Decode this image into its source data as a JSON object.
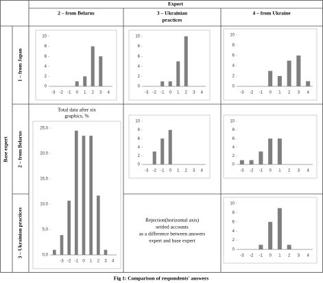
{
  "table": {
    "top": "Expert",
    "side": "Base expert",
    "columns": [
      [
        "2 – from Belarus"
      ],
      [
        "3 – Ukrainian",
        "practices"
      ],
      [
        "4 – from Ukraine"
      ]
    ],
    "rows": [
      "1 – from Japan",
      "2 – from Belarus",
      "3 – Ukrainian practices"
    ],
    "note": [
      "Rejection(horizontal axis)",
      "settled accounts",
      "as a difference between answers",
      "expert and base expert"
    ]
  },
  "caption": "Fig 1: Comparison of respondents' answers",
  "chart_data": [
    {
      "type": "bar",
      "color": "#7f7f7f",
      "categories": [
        "-3",
        "-2",
        "-1",
        "0",
        "1",
        "2",
        "3",
        "4"
      ],
      "values": [
        0,
        0,
        0,
        1,
        2,
        8,
        6,
        0
      ],
      "ylim": [
        0,
        10
      ],
      "yticks": [
        0,
        2,
        4,
        6,
        8,
        10
      ]
    },
    {
      "type": "bar",
      "color": "#7f7f7f",
      "categories": [
        "-3",
        "-2",
        "-1",
        "0",
        "1",
        "2",
        "3",
        "4"
      ],
      "values": [
        0,
        0,
        1,
        1,
        5,
        10,
        0,
        0
      ],
      "ylim": [
        0,
        10
      ],
      "yticks": [
        0,
        2,
        4,
        6,
        8,
        10
      ]
    },
    {
      "type": "bar",
      "color": "#7f7f7f",
      "categories": [
        "-3",
        "-2",
        "-1",
        "0",
        "1",
        "2",
        "3",
        "4"
      ],
      "values": [
        0,
        0,
        0,
        3,
        2,
        5,
        6,
        1
      ],
      "ylim": [
        0,
        10
      ],
      "yticks": [
        0,
        2,
        4,
        6,
        8,
        10
      ]
    },
    {
      "type": "bar",
      "color": "#7f7f7f",
      "title": [
        "Total data after six",
        "graphics, %"
      ],
      "categories": [
        null,
        "-3",
        "-2",
        "-1",
        "0",
        "1",
        "2",
        "3",
        "4"
      ],
      "values": [
        1,
        3.9,
        10.7,
        24.5,
        23.5,
        23.5,
        11.7,
        1,
        0
      ],
      "ylim": [
        0,
        25
      ],
      "yticks": [
        {
          "value": 0,
          "label": "0,0"
        },
        {
          "value": 5,
          "label": "5,0"
        },
        {
          "value": 10,
          "label": "10,0"
        },
        {
          "value": 15,
          "label": "15,0"
        },
        {
          "value": 20,
          "label": "20,0"
        },
        {
          "value": 25,
          "label": "25,0"
        }
      ]
    },
    {
      "type": "bar",
      "color": "#7f7f7f",
      "categories": [
        "-3",
        "-2",
        "-1",
        "0",
        "1",
        "2",
        "3",
        "4"
      ],
      "values": [
        0,
        3,
        6,
        8,
        0,
        0,
        0,
        0
      ],
      "ylim": [
        0,
        10
      ],
      "yticks": [
        0,
        2,
        4,
        6,
        8,
        10
      ]
    },
    {
      "type": "bar",
      "color": "#7f7f7f",
      "categories": [
        "-3",
        "-2",
        "-1",
        "0",
        "1",
        "2",
        "3",
        "4"
      ],
      "values": [
        1,
        1,
        3,
        6,
        6,
        0,
        0,
        0
      ],
      "ylim": [
        0,
        10
      ],
      "yticks": [
        0,
        2,
        4,
        6,
        8,
        10
      ]
    },
    {
      "type": "bar",
      "color": "#7f7f7f",
      "categories": [
        "-3",
        "-2",
        "-1",
        "0",
        "1",
        "2",
        "3",
        "4"
      ],
      "values": [
        0,
        0,
        1,
        6,
        9,
        1,
        0,
        0
      ],
      "ylim": [
        0,
        10
      ],
      "yticks": [
        0,
        2,
        4,
        6,
        8,
        10
      ]
    }
  ]
}
